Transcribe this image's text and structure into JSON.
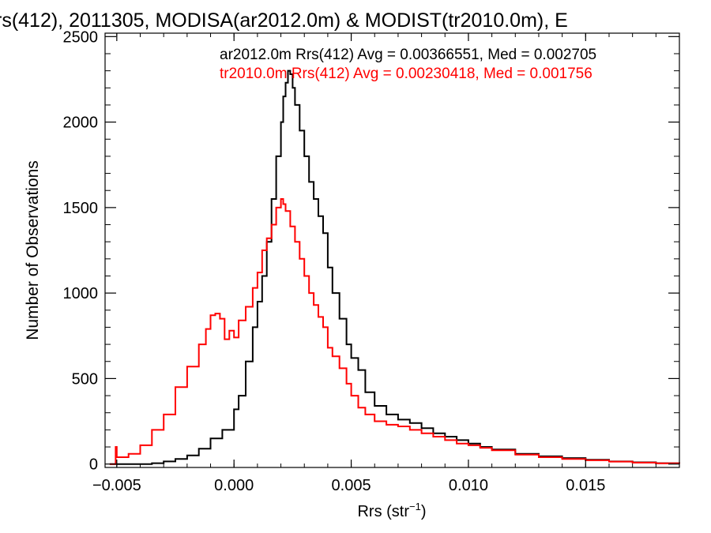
{
  "chart_data": {
    "type": "line",
    "title": "rs(412), 2011305, MODISA(ar2012.0m) & MODIST(tr2010.0m), E",
    "xlabel": "Rrs (str",
    "xlabel_sup": "−1",
    "xlabel_close": ")",
    "ylabel": "Number of Observations",
    "xlim": [
      -0.0055,
      0.019
    ],
    "ylim": [
      -20,
      2520
    ],
    "x_ticks": [
      -0.005,
      0.0,
      0.005,
      0.01,
      0.015
    ],
    "x_tick_labels": [
      "−0.005",
      "0.000",
      "0.005",
      "0.010",
      "0.015"
    ],
    "y_ticks": [
      0,
      500,
      1000,
      1500,
      2000,
      2500
    ],
    "y_tick_labels": [
      "0",
      "500",
      "1000",
      "1500",
      "2000",
      "2500"
    ],
    "grid": false,
    "series": [
      {
        "name": "ar2012.0m Rrs(412) Avg = 0.00366551, Med = 0.002705",
        "color": "#000000",
        "points": [
          [
            -0.0053,
            0
          ],
          [
            -0.004,
            0
          ],
          [
            -0.0035,
            5
          ],
          [
            -0.003,
            15
          ],
          [
            -0.0025,
            30
          ],
          [
            -0.002,
            50
          ],
          [
            -0.0015,
            90
          ],
          [
            -0.001,
            150
          ],
          [
            -0.0005,
            200
          ],
          [
            0.0,
            320
          ],
          [
            0.0002,
            400
          ],
          [
            0.0005,
            600
          ],
          [
            0.0008,
            800
          ],
          [
            0.001,
            950
          ],
          [
            0.0012,
            1100
          ],
          [
            0.0014,
            1300
          ],
          [
            0.0016,
            1550
          ],
          [
            0.0018,
            1800
          ],
          [
            0.002,
            2000
          ],
          [
            0.0021,
            2150
          ],
          [
            0.0022,
            2230
          ],
          [
            0.0023,
            2300
          ],
          [
            0.0024,
            2280
          ],
          [
            0.0025,
            2200
          ],
          [
            0.0026,
            2100
          ],
          [
            0.0028,
            1950
          ],
          [
            0.003,
            1800
          ],
          [
            0.0032,
            1650
          ],
          [
            0.0034,
            1550
          ],
          [
            0.0036,
            1450
          ],
          [
            0.0038,
            1350
          ],
          [
            0.004,
            1150
          ],
          [
            0.0042,
            1000
          ],
          [
            0.0045,
            850
          ],
          [
            0.0048,
            700
          ],
          [
            0.005,
            620
          ],
          [
            0.0053,
            550
          ],
          [
            0.0056,
            420
          ],
          [
            0.006,
            340
          ],
          [
            0.0065,
            290
          ],
          [
            0.007,
            260
          ],
          [
            0.0075,
            240
          ],
          [
            0.008,
            210
          ],
          [
            0.0085,
            180
          ],
          [
            0.009,
            160
          ],
          [
            0.0095,
            140
          ],
          [
            0.01,
            120
          ],
          [
            0.0105,
            100
          ],
          [
            0.011,
            85
          ],
          [
            0.012,
            60
          ],
          [
            0.013,
            45
          ],
          [
            0.014,
            35
          ],
          [
            0.015,
            25
          ],
          [
            0.016,
            15
          ],
          [
            0.017,
            10
          ],
          [
            0.018,
            5
          ],
          [
            0.019,
            3
          ]
        ]
      },
      {
        "name": "tr2010.0m Rrs(412) Avg = 0.00230418, Med = 0.001756",
        "color": "#ff0000",
        "points": [
          [
            -0.0053,
            0
          ],
          [
            -0.00505,
            100
          ],
          [
            -0.005,
            40
          ],
          [
            -0.0045,
            60
          ],
          [
            -0.004,
            110
          ],
          [
            -0.0035,
            200
          ],
          [
            -0.003,
            290
          ],
          [
            -0.0025,
            450
          ],
          [
            -0.002,
            570
          ],
          [
            -0.0015,
            700
          ],
          [
            -0.0012,
            790
          ],
          [
            -0.001,
            870
          ],
          [
            -0.0008,
            880
          ],
          [
            -0.0006,
            850
          ],
          [
            -0.0004,
            730
          ],
          [
            -0.0002,
            780
          ],
          [
            0.0,
            740
          ],
          [
            0.0002,
            840
          ],
          [
            0.0005,
            920
          ],
          [
            0.0008,
            1030
          ],
          [
            0.001,
            1120
          ],
          [
            0.0012,
            1250
          ],
          [
            0.0014,
            1320
          ],
          [
            0.0016,
            1400
          ],
          [
            0.0018,
            1500
          ],
          [
            0.002,
            1550
          ],
          [
            0.0021,
            1520
          ],
          [
            0.0022,
            1480
          ],
          [
            0.0024,
            1390
          ],
          [
            0.0026,
            1300
          ],
          [
            0.0028,
            1200
          ],
          [
            0.003,
            1100
          ],
          [
            0.0032,
            1000
          ],
          [
            0.0034,
            930
          ],
          [
            0.0036,
            860
          ],
          [
            0.0038,
            800
          ],
          [
            0.004,
            680
          ],
          [
            0.0042,
            630
          ],
          [
            0.0045,
            560
          ],
          [
            0.0048,
            470
          ],
          [
            0.005,
            400
          ],
          [
            0.0053,
            330
          ],
          [
            0.0056,
            290
          ],
          [
            0.006,
            250
          ],
          [
            0.0065,
            230
          ],
          [
            0.007,
            220
          ],
          [
            0.0075,
            200
          ],
          [
            0.008,
            180
          ],
          [
            0.0085,
            160
          ],
          [
            0.009,
            140
          ],
          [
            0.0095,
            120
          ],
          [
            0.01,
            110
          ],
          [
            0.0105,
            95
          ],
          [
            0.011,
            80
          ],
          [
            0.012,
            55
          ],
          [
            0.013,
            40
          ],
          [
            0.014,
            30
          ],
          [
            0.015,
            22
          ],
          [
            0.016,
            14
          ],
          [
            0.017,
            8
          ],
          [
            0.018,
            4
          ],
          [
            0.019,
            2
          ]
        ]
      }
    ]
  }
}
